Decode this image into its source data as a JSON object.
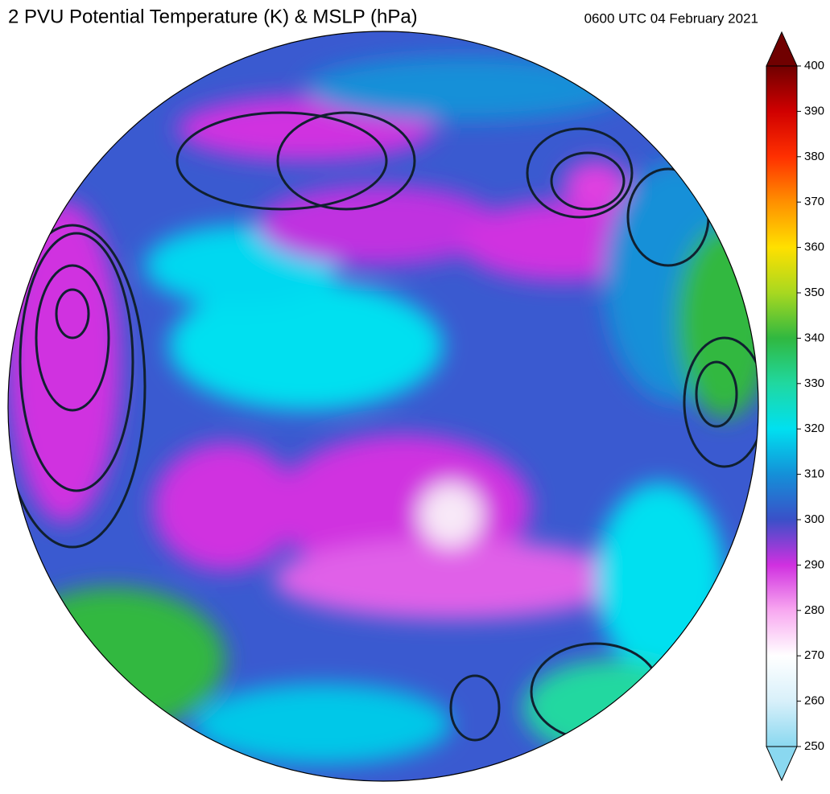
{
  "header": {
    "title": "2 PVU Potential Temperature (K) & MSLP (hPa)",
    "timestamp": "0600 UTC 04 February 2021"
  },
  "colorbar": {
    "lim": [
      250,
      400
    ],
    "ticks": [
      250,
      260,
      270,
      280,
      290,
      300,
      310,
      320,
      330,
      340,
      350,
      360,
      370,
      380,
      390,
      400
    ],
    "colors": [
      "#8ad8f0",
      "#d8f0fa",
      "#ffffff",
      "#f8a8f0",
      "#d030e0",
      "#3a50c8",
      "#1490d8",
      "#00e0f0",
      "#20d8a0",
      "#30b840",
      "#a8d820",
      "#ffe000",
      "#ff9000",
      "#ff3000",
      "#d00000",
      "#700000"
    ]
  }
}
